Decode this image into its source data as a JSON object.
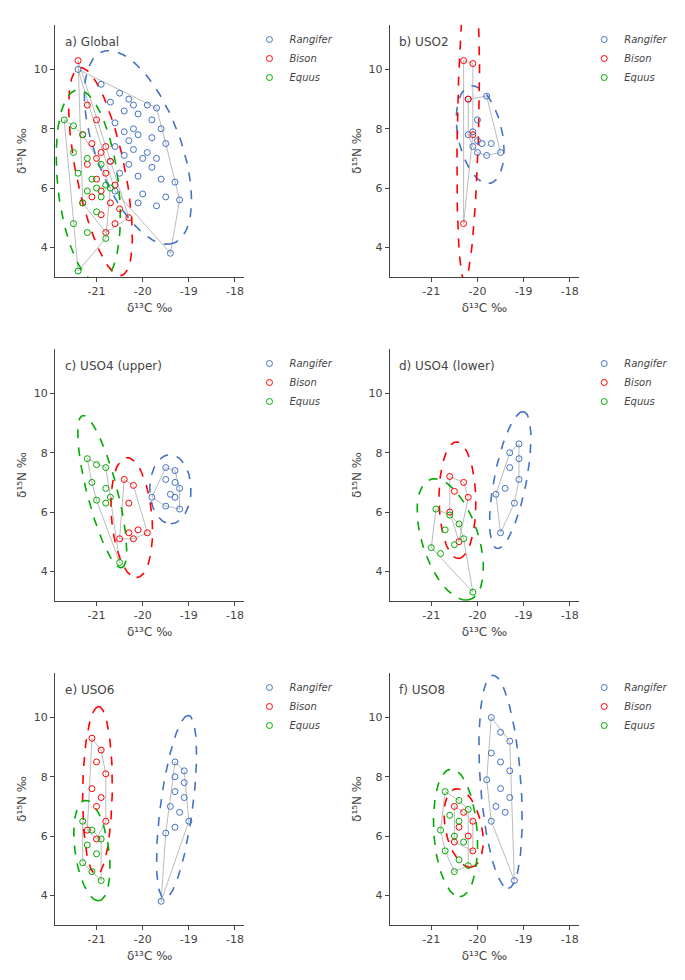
{
  "chart_data": [
    {
      "type": "scatter",
      "title": "a) Global",
      "x_label": "δ¹³C ‰",
      "y_label": "δ¹⁵N ‰",
      "xlim": [
        -21.9,
        -17.8
      ],
      "ylim": [
        3.0,
        11.5
      ],
      "xticks": [
        -21,
        -20,
        -19,
        -18
      ],
      "yticks": [
        4,
        6,
        8,
        10
      ],
      "grid": false,
      "legend": "upper right",
      "series": [
        {
          "name": "Rangifer",
          "color": "#4472C4",
          "marker": "open circle",
          "values": [
            [
              -21.4,
              10.0
            ],
            [
              -20.9,
              9.5
            ],
            [
              -20.5,
              9.2
            ],
            [
              -20.3,
              9.0
            ],
            [
              -20.7,
              8.9
            ],
            [
              -20.2,
              8.8
            ],
            [
              -19.9,
              8.8
            ],
            [
              -19.7,
              8.7
            ],
            [
              -20.4,
              8.6
            ],
            [
              -20.1,
              8.5
            ],
            [
              -19.8,
              8.3
            ],
            [
              -20.6,
              8.2
            ],
            [
              -20.2,
              8.0
            ],
            [
              -19.6,
              8.0
            ],
            [
              -20.4,
              7.9
            ],
            [
              -20.1,
              7.8
            ],
            [
              -19.8,
              7.7
            ],
            [
              -20.3,
              7.6
            ],
            [
              -19.5,
              7.5
            ],
            [
              -20.6,
              7.4
            ],
            [
              -20.2,
              7.3
            ],
            [
              -19.9,
              7.2
            ],
            [
              -20.4,
              7.1
            ],
            [
              -20.0,
              7.0
            ],
            [
              -19.7,
              7.0
            ],
            [
              -20.7,
              6.9
            ],
            [
              -20.3,
              6.8
            ],
            [
              -19.8,
              6.7
            ],
            [
              -20.5,
              6.5
            ],
            [
              -20.1,
              6.4
            ],
            [
              -19.6,
              6.3
            ],
            [
              -19.3,
              6.2
            ],
            [
              -20.6,
              5.9
            ],
            [
              -20.0,
              5.8
            ],
            [
              -19.5,
              5.7
            ],
            [
              -19.2,
              5.6
            ],
            [
              -20.1,
              5.5
            ],
            [
              -19.7,
              5.4
            ],
            [
              -19.4,
              3.8
            ]
          ]
        },
        {
          "name": "Bison",
          "color": "#FF0000",
          "marker": "open circle",
          "values": [
            [
              -21.4,
              10.3
            ],
            [
              -21.2,
              8.8
            ],
            [
              -21.0,
              8.3
            ],
            [
              -21.3,
              7.8
            ],
            [
              -21.1,
              7.5
            ],
            [
              -20.8,
              7.4
            ],
            [
              -20.9,
              7.2
            ],
            [
              -21.0,
              7.0
            ],
            [
              -20.7,
              6.9
            ],
            [
              -21.2,
              6.8
            ],
            [
              -20.8,
              6.5
            ],
            [
              -21.0,
              6.3
            ],
            [
              -20.6,
              6.1
            ],
            [
              -20.9,
              5.9
            ],
            [
              -21.1,
              5.7
            ],
            [
              -20.7,
              5.5
            ],
            [
              -20.5,
              5.3
            ],
            [
              -20.9,
              5.1
            ],
            [
              -20.3,
              5.0
            ],
            [
              -20.6,
              4.8
            ],
            [
              -20.8,
              4.5
            ],
            [
              -21.3,
              5.5
            ]
          ]
        },
        {
          "name": "Equus",
          "color": "#00AA00",
          "marker": "open circle",
          "values": [
            [
              -21.7,
              8.3
            ],
            [
              -21.5,
              8.1
            ],
            [
              -21.3,
              7.8
            ],
            [
              -21.5,
              7.2
            ],
            [
              -21.2,
              7.0
            ],
            [
              -20.9,
              6.8
            ],
            [
              -21.4,
              6.5
            ],
            [
              -21.1,
              6.3
            ],
            [
              -20.8,
              6.1
            ],
            [
              -21.2,
              5.9
            ],
            [
              -20.9,
              5.7
            ],
            [
              -21.3,
              5.5
            ],
            [
              -21.0,
              5.2
            ],
            [
              -21.5,
              4.8
            ],
            [
              -21.2,
              4.5
            ],
            [
              -20.8,
              4.3
            ],
            [
              -21.0,
              6.0
            ],
            [
              -20.7,
              6.0
            ],
            [
              -21.4,
              3.2
            ]
          ]
        }
      ]
    },
    {
      "type": "scatter",
      "title": "b) USO2",
      "x_label": "δ¹³C ‰",
      "y_label": "δ¹⁵N ‰",
      "xlim": [
        -21.9,
        -17.8
      ],
      "ylim": [
        3.0,
        11.5
      ],
      "xticks": [
        -21,
        -20,
        -19,
        -18
      ],
      "yticks": [
        4,
        6,
        8,
        10
      ],
      "grid": false,
      "legend": "upper right",
      "series": [
        {
          "name": "Rangifer",
          "color": "#4472C4",
          "marker": "open circle",
          "values": [
            [
              -20.2,
              9.0
            ],
            [
              -19.8,
              9.1
            ],
            [
              -20.0,
              8.3
            ],
            [
              -20.1,
              7.9
            ],
            [
              -20.2,
              7.8
            ],
            [
              -20.0,
              7.6
            ],
            [
              -19.9,
              7.5
            ],
            [
              -20.1,
              7.4
            ],
            [
              -20.0,
              7.2
            ],
            [
              -19.8,
              7.1
            ],
            [
              -19.5,
              7.2
            ],
            [
              -19.7,
              7.5
            ]
          ]
        },
        {
          "name": "Bison",
          "color": "#FF0000",
          "marker": "open circle",
          "values": [
            [
              -20.3,
              10.3
            ],
            [
              -20.1,
              10.2
            ],
            [
              -20.2,
              9.0
            ],
            [
              -20.1,
              7.8
            ],
            [
              -20.3,
              4.8
            ]
          ]
        },
        {
          "name": "Equus",
          "color": "#00AA00",
          "marker": "open circle",
          "values": []
        }
      ]
    },
    {
      "type": "scatter",
      "title": "c) USO4 (upper)",
      "x_label": "δ¹³C ‰",
      "y_label": "δ¹⁵N ‰",
      "xlim": [
        -21.9,
        -17.8
      ],
      "ylim": [
        3.0,
        11.5
      ],
      "xticks": [
        -21,
        -20,
        -19,
        -18
      ],
      "yticks": [
        4,
        6,
        8,
        10
      ],
      "grid": false,
      "legend": "upper right",
      "series": [
        {
          "name": "Rangifer",
          "color": "#4472C4",
          "marker": "open circle",
          "values": [
            [
              -19.5,
              7.5
            ],
            [
              -19.3,
              7.4
            ],
            [
              -19.5,
              7.1
            ],
            [
              -19.3,
              7.0
            ],
            [
              -19.2,
              6.8
            ],
            [
              -19.4,
              6.6
            ],
            [
              -19.3,
              6.5
            ],
            [
              -19.5,
              6.2
            ],
            [
              -19.2,
              6.1
            ],
            [
              -19.8,
              6.5
            ]
          ]
        },
        {
          "name": "Bison",
          "color": "#FF0000",
          "marker": "open circle",
          "values": [
            [
              -20.4,
              7.1
            ],
            [
              -20.2,
              6.9
            ],
            [
              -20.3,
              6.3
            ],
            [
              -20.1,
              5.4
            ],
            [
              -20.3,
              5.3
            ],
            [
              -19.9,
              5.3
            ],
            [
              -20.2,
              5.1
            ],
            [
              -20.5,
              5.1
            ]
          ]
        },
        {
          "name": "Equus",
          "color": "#00AA00",
          "marker": "open circle",
          "values": [
            [
              -21.2,
              7.8
            ],
            [
              -21.0,
              7.6
            ],
            [
              -20.8,
              7.5
            ],
            [
              -21.1,
              7.0
            ],
            [
              -20.8,
              6.8
            ],
            [
              -20.7,
              6.5
            ],
            [
              -21.0,
              6.4
            ],
            [
              -20.8,
              6.3
            ],
            [
              -20.5,
              4.3
            ]
          ]
        }
      ]
    },
    {
      "type": "scatter",
      "title": "d) USO4 (lower)",
      "x_label": "δ¹³C ‰",
      "y_label": "δ¹⁵N ‰",
      "xlim": [
        -21.9,
        -17.8
      ],
      "ylim": [
        3.0,
        11.5
      ],
      "xticks": [
        -21,
        -20,
        -19,
        -18
      ],
      "yticks": [
        4,
        6,
        8,
        10
      ],
      "grid": false,
      "legend": "upper right",
      "series": [
        {
          "name": "Rangifer",
          "color": "#4472C4",
          "marker": "open circle",
          "values": [
            [
              -19.1,
              8.3
            ],
            [
              -19.3,
              8.0
            ],
            [
              -19.1,
              7.8
            ],
            [
              -19.3,
              7.5
            ],
            [
              -19.1,
              7.1
            ],
            [
              -19.4,
              6.8
            ],
            [
              -19.6,
              6.6
            ],
            [
              -19.2,
              6.3
            ],
            [
              -19.5,
              5.3
            ]
          ]
        },
        {
          "name": "Bison",
          "color": "#FF0000",
          "marker": "open circle",
          "values": [
            [
              -20.6,
              7.2
            ],
            [
              -20.3,
              7.0
            ],
            [
              -20.5,
              6.7
            ],
            [
              -20.2,
              6.5
            ],
            [
              -20.4,
              5.0
            ],
            [
              -20.6,
              6.0
            ]
          ]
        },
        {
          "name": "Equus",
          "color": "#00AA00",
          "marker": "open circle",
          "values": [
            [
              -20.9,
              6.1
            ],
            [
              -20.6,
              5.9
            ],
            [
              -20.4,
              5.6
            ],
            [
              -20.7,
              5.4
            ],
            [
              -20.5,
              4.9
            ],
            [
              -20.8,
              4.6
            ],
            [
              -21.0,
              4.8
            ],
            [
              -20.3,
              5.1
            ],
            [
              -20.1,
              3.3
            ]
          ]
        }
      ]
    },
    {
      "type": "scatter",
      "title": "e) USO6",
      "x_label": "δ¹³C ‰",
      "y_label": "δ¹⁵N ‰",
      "xlim": [
        -21.9,
        -17.8
      ],
      "ylim": [
        3.0,
        11.5
      ],
      "xticks": [
        -21,
        -20,
        -19,
        -18
      ],
      "yticks": [
        4,
        6,
        8,
        10
      ],
      "grid": false,
      "legend": "upper right",
      "series": [
        {
          "name": "Rangifer",
          "color": "#4472C4",
          "marker": "open circle",
          "values": [
            [
              -19.3,
              8.5
            ],
            [
              -19.1,
              8.2
            ],
            [
              -19.3,
              8.0
            ],
            [
              -19.1,
              7.8
            ],
            [
              -19.3,
              7.5
            ],
            [
              -19.1,
              7.3
            ],
            [
              -19.4,
              7.0
            ],
            [
              -19.2,
              6.8
            ],
            [
              -19.0,
              6.5
            ],
            [
              -19.3,
              6.3
            ],
            [
              -19.5,
              6.1
            ],
            [
              -19.6,
              3.8
            ]
          ]
        },
        {
          "name": "Bison",
          "color": "#FF0000",
          "marker": "open circle",
          "values": [
            [
              -21.1,
              9.3
            ],
            [
              -20.9,
              8.9
            ],
            [
              -21.0,
              8.5
            ],
            [
              -20.8,
              8.1
            ],
            [
              -21.1,
              7.6
            ],
            [
              -20.9,
              7.3
            ],
            [
              -21.0,
              7.0
            ],
            [
              -20.8,
              6.5
            ],
            [
              -21.2,
              6.2
            ],
            [
              -21.0,
              5.9
            ]
          ]
        },
        {
          "name": "Equus",
          "color": "#00AA00",
          "marker": "open circle",
          "values": [
            [
              -21.3,
              6.5
            ],
            [
              -21.1,
              6.2
            ],
            [
              -20.9,
              5.9
            ],
            [
              -21.2,
              5.7
            ],
            [
              -21.0,
              5.4
            ],
            [
              -21.3,
              5.1
            ],
            [
              -21.1,
              4.8
            ],
            [
              -20.9,
              4.5
            ]
          ]
        }
      ]
    },
    {
      "type": "scatter",
      "title": "f) USO8",
      "x_label": "δ¹³C ‰",
      "y_label": "δ¹⁵N ‰",
      "xlim": [
        -21.9,
        -17.8
      ],
      "ylim": [
        3.0,
        11.5
      ],
      "xticks": [
        -21,
        -20,
        -19,
        -18
      ],
      "yticks": [
        4,
        6,
        8,
        10
      ],
      "grid": false,
      "legend": "upper right",
      "series": [
        {
          "name": "Rangifer",
          "color": "#4472C4",
          "marker": "open circle",
          "values": [
            [
              -19.7,
              10.0
            ],
            [
              -19.5,
              9.5
            ],
            [
              -19.3,
              9.2
            ],
            [
              -19.7,
              8.8
            ],
            [
              -19.5,
              8.5
            ],
            [
              -19.3,
              8.2
            ],
            [
              -19.8,
              7.9
            ],
            [
              -19.5,
              7.6
            ],
            [
              -19.3,
              7.3
            ],
            [
              -19.6,
              7.0
            ],
            [
              -19.4,
              6.8
            ],
            [
              -19.7,
              6.5
            ],
            [
              -19.2,
              4.5
            ]
          ]
        },
        {
          "name": "Bison",
          "color": "#FF0000",
          "marker": "open circle",
          "values": [
            [
              -20.5,
              7.0
            ],
            [
              -20.3,
              6.8
            ],
            [
              -20.1,
              6.5
            ],
            [
              -20.4,
              6.3
            ],
            [
              -20.2,
              6.0
            ],
            [
              -20.5,
              5.8
            ],
            [
              -20.1,
              5.5
            ]
          ]
        },
        {
          "name": "Equus",
          "color": "#00AA00",
          "marker": "open circle",
          "values": [
            [
              -20.7,
              7.5
            ],
            [
              -20.4,
              7.2
            ],
            [
              -20.2,
              6.9
            ],
            [
              -20.6,
              6.7
            ],
            [
              -20.4,
              6.5
            ],
            [
              -20.8,
              6.2
            ],
            [
              -20.5,
              6.0
            ],
            [
              -20.3,
              5.8
            ],
            [
              -20.7,
              5.5
            ],
            [
              -20.4,
              5.2
            ],
            [
              -20.2,
              5.0
            ],
            [
              -20.5,
              4.8
            ]
          ]
        }
      ]
    }
  ]
}
